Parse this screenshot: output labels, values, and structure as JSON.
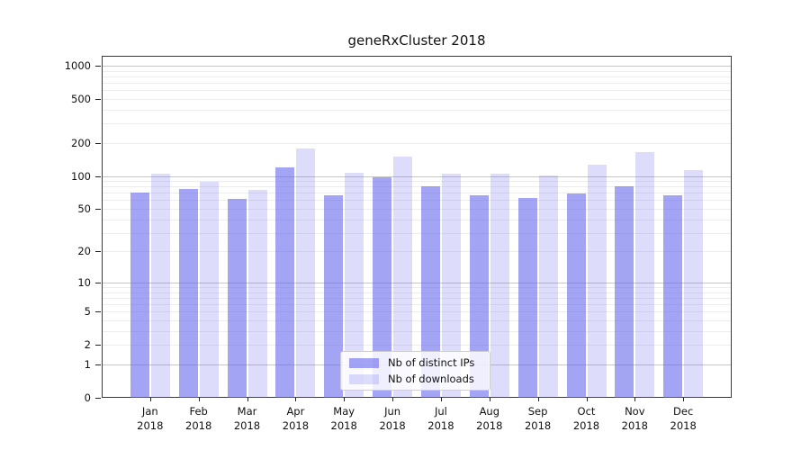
{
  "chart_data": {
    "type": "bar",
    "title": "geneRxCluster 2018",
    "categories": [
      "Jan",
      "Feb",
      "Mar",
      "Apr",
      "May",
      "Jun",
      "Jul",
      "Aug",
      "Sep",
      "Oct",
      "Nov",
      "Dec"
    ],
    "x_year_label": "2018",
    "series": [
      {
        "name": "Nb of distinct IPs",
        "color": "rgba(99,99,237,0.58)",
        "values": [
          71,
          76,
          62,
          119,
          66,
          97,
          81,
          66,
          63,
          69,
          80,
          67
        ]
      },
      {
        "name": "Nb of downloads",
        "color": "rgba(99,99,237,0.22)",
        "values": [
          104,
          88,
          74,
          179,
          106,
          150,
          104,
          105,
          101,
          126,
          165,
          113
        ]
      }
    ],
    "y_scale": "log1p",
    "ylim": [
      0,
      1000
    ],
    "y_ticks": [
      0,
      1,
      2,
      5,
      10,
      20,
      50,
      100,
      200,
      500,
      1000
    ],
    "grid": {
      "major_values": [
        1,
        10,
        100,
        1000
      ],
      "minor_values": [
        2,
        3,
        4,
        5,
        6,
        7,
        8,
        9,
        20,
        30,
        40,
        50,
        60,
        70,
        80,
        90,
        200,
        300,
        400,
        500,
        600,
        700,
        800,
        900
      ],
      "major_color": "#c6c6c6",
      "minor_color": "#ededed"
    },
    "legend_position": "lower center",
    "spine_color": "#3a3a3a"
  }
}
